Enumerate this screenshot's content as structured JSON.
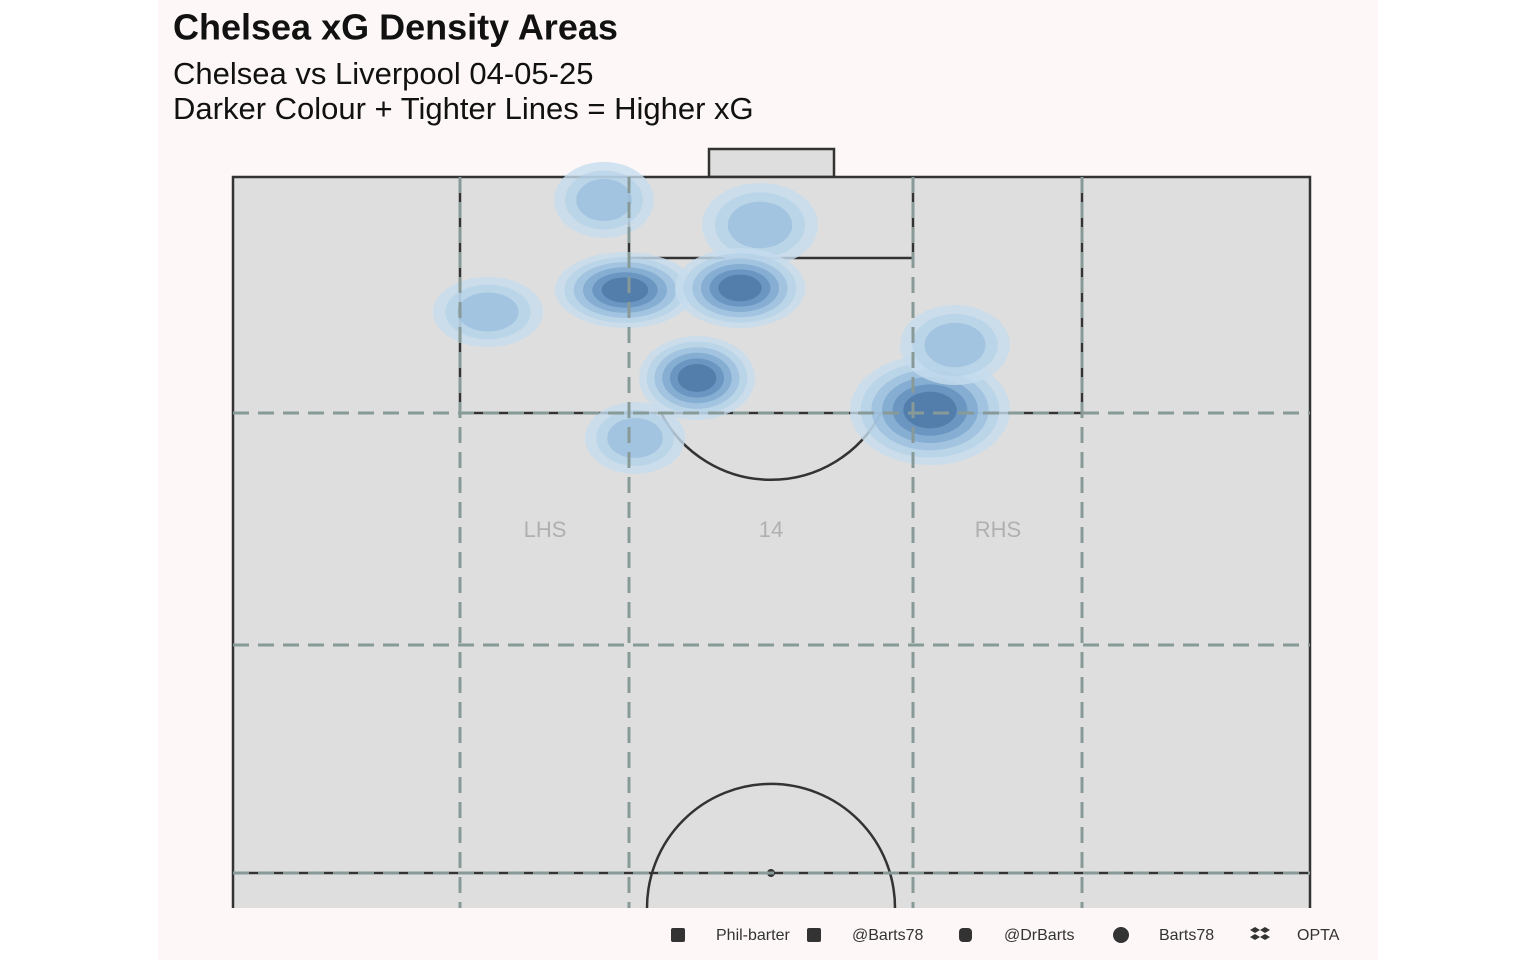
{
  "header": {
    "title": "Chelsea xG Density Areas",
    "subtitle": [
      "Chelsea vs Liverpool 04-05-25",
      "Darker Colour + Tighter Lines = Higher xG"
    ]
  },
  "zones": [
    "LHS",
    "14",
    "RHS"
  ],
  "footer": [
    "Phil-barter",
    "@Barts78",
    "@DrBarts",
    "Barts78",
    "OPTA"
  ]
}
